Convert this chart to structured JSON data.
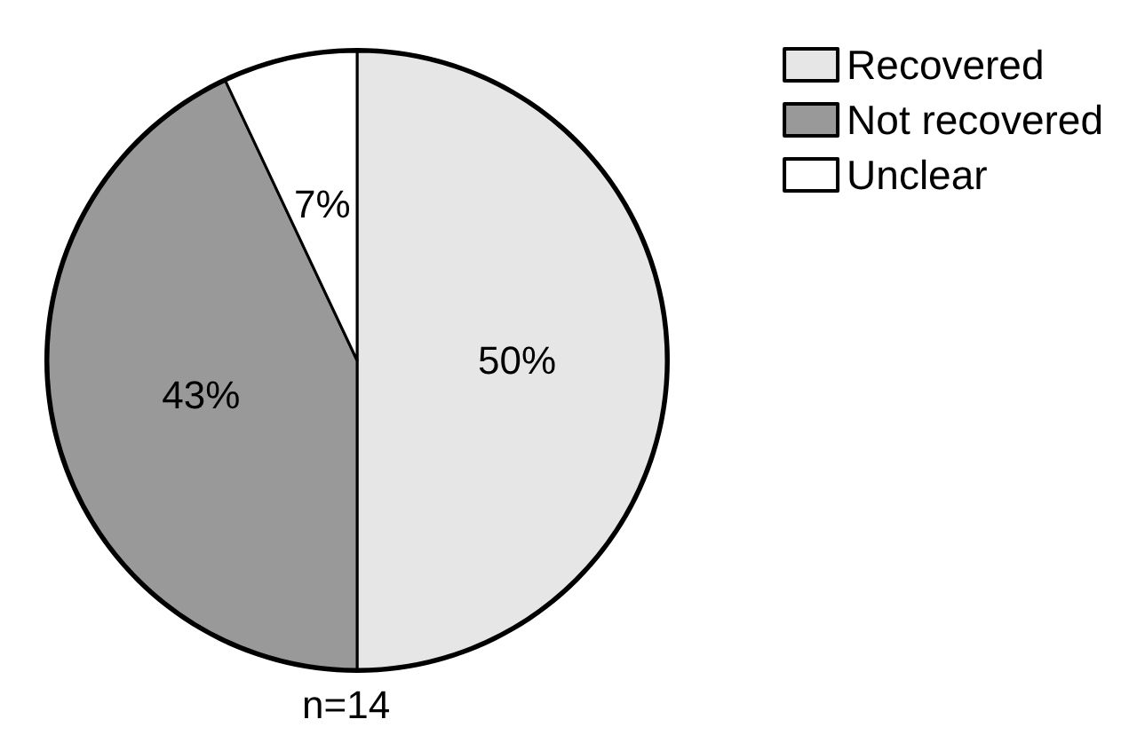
{
  "chart_data": {
    "type": "pie",
    "categories": [
      "Recovered",
      "Not recovered",
      "Unclear"
    ],
    "values": [
      50,
      43,
      7
    ],
    "colors": [
      "#e6e6e6",
      "#999999",
      "#ffffff"
    ],
    "value_labels": [
      "50%",
      "43%",
      "7%"
    ],
    "legend": "top right",
    "annotations": [
      "n=14"
    ]
  }
}
